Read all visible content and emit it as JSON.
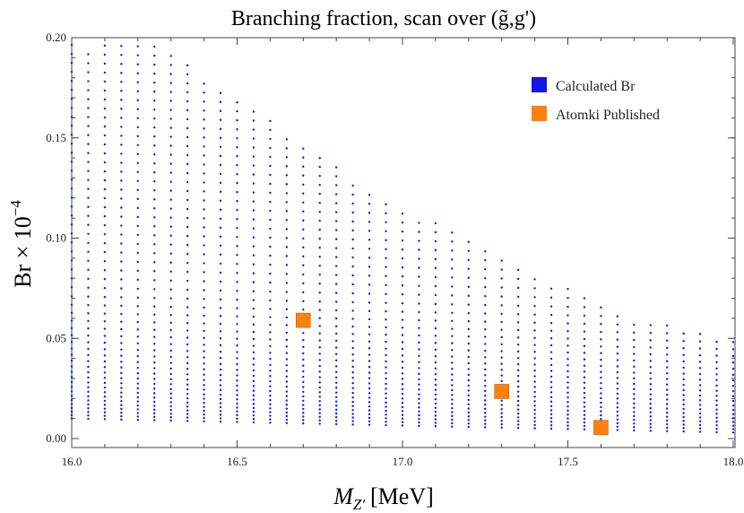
{
  "chart_data": {
    "type": "scatter",
    "title": "Branching fraction, scan over (g̃,g')",
    "xlabel_main": "M",
    "xlabel_sub": "Z'",
    "xlabel_unit": "[MeV]",
    "ylabel": "Br × 10",
    "ylabel_exp": "−4",
    "xlim": [
      16.0,
      18.0
    ],
    "ylim": [
      0.0,
      0.2
    ],
    "x_ticks": [
      {
        "value": 16.0,
        "label": "16.0"
      },
      {
        "value": 16.5,
        "label": "16.5"
      },
      {
        "value": 17.0,
        "label": "17.0"
      },
      {
        "value": 17.5,
        "label": "17.5"
      },
      {
        "value": 18.0,
        "label": "18.0"
      }
    ],
    "y_ticks": [
      {
        "value": 0.0,
        "label": "0.00"
      },
      {
        "value": 0.05,
        "label": "0.05"
      },
      {
        "value": 0.1,
        "label": "0.10"
      },
      {
        "value": 0.15,
        "label": "0.15"
      },
      {
        "value": 0.2,
        "label": "0.20"
      }
    ],
    "legend_position": "top-right",
    "series": [
      {
        "name": "Calculated Br",
        "color": "#1414e6",
        "marker": "dot",
        "x_start": 16.0,
        "x_step": 0.05,
        "columns": 41,
        "y_min_start": 0.01,
        "y_min_end": 0.003,
        "y_max_column_tops": [
          0.198,
          0.195,
          0.197,
          0.198,
          0.199,
          0.198,
          0.192,
          0.187,
          0.181,
          0.176,
          0.171,
          0.165,
          0.159,
          0.153,
          0.148,
          0.142,
          0.136,
          0.13,
          0.125,
          0.12,
          0.116,
          0.112,
          0.108,
          0.104,
          0.1,
          0.095,
          0.091,
          0.087,
          0.083,
          0.079,
          0.075,
          0.071,
          0.067,
          0.063,
          0.06,
          0.058,
          0.057,
          0.055,
          0.053,
          0.051,
          0.049
        ],
        "y_step": 0.0028
      },
      {
        "name": "Atomki Published",
        "color": "#ff8010",
        "marker": "square",
        "points": [
          {
            "x": 16.7,
            "y": 0.059
          },
          {
            "x": 17.3,
            "y": 0.0235
          },
          {
            "x": 17.6,
            "y": 0.0055
          }
        ]
      }
    ]
  }
}
